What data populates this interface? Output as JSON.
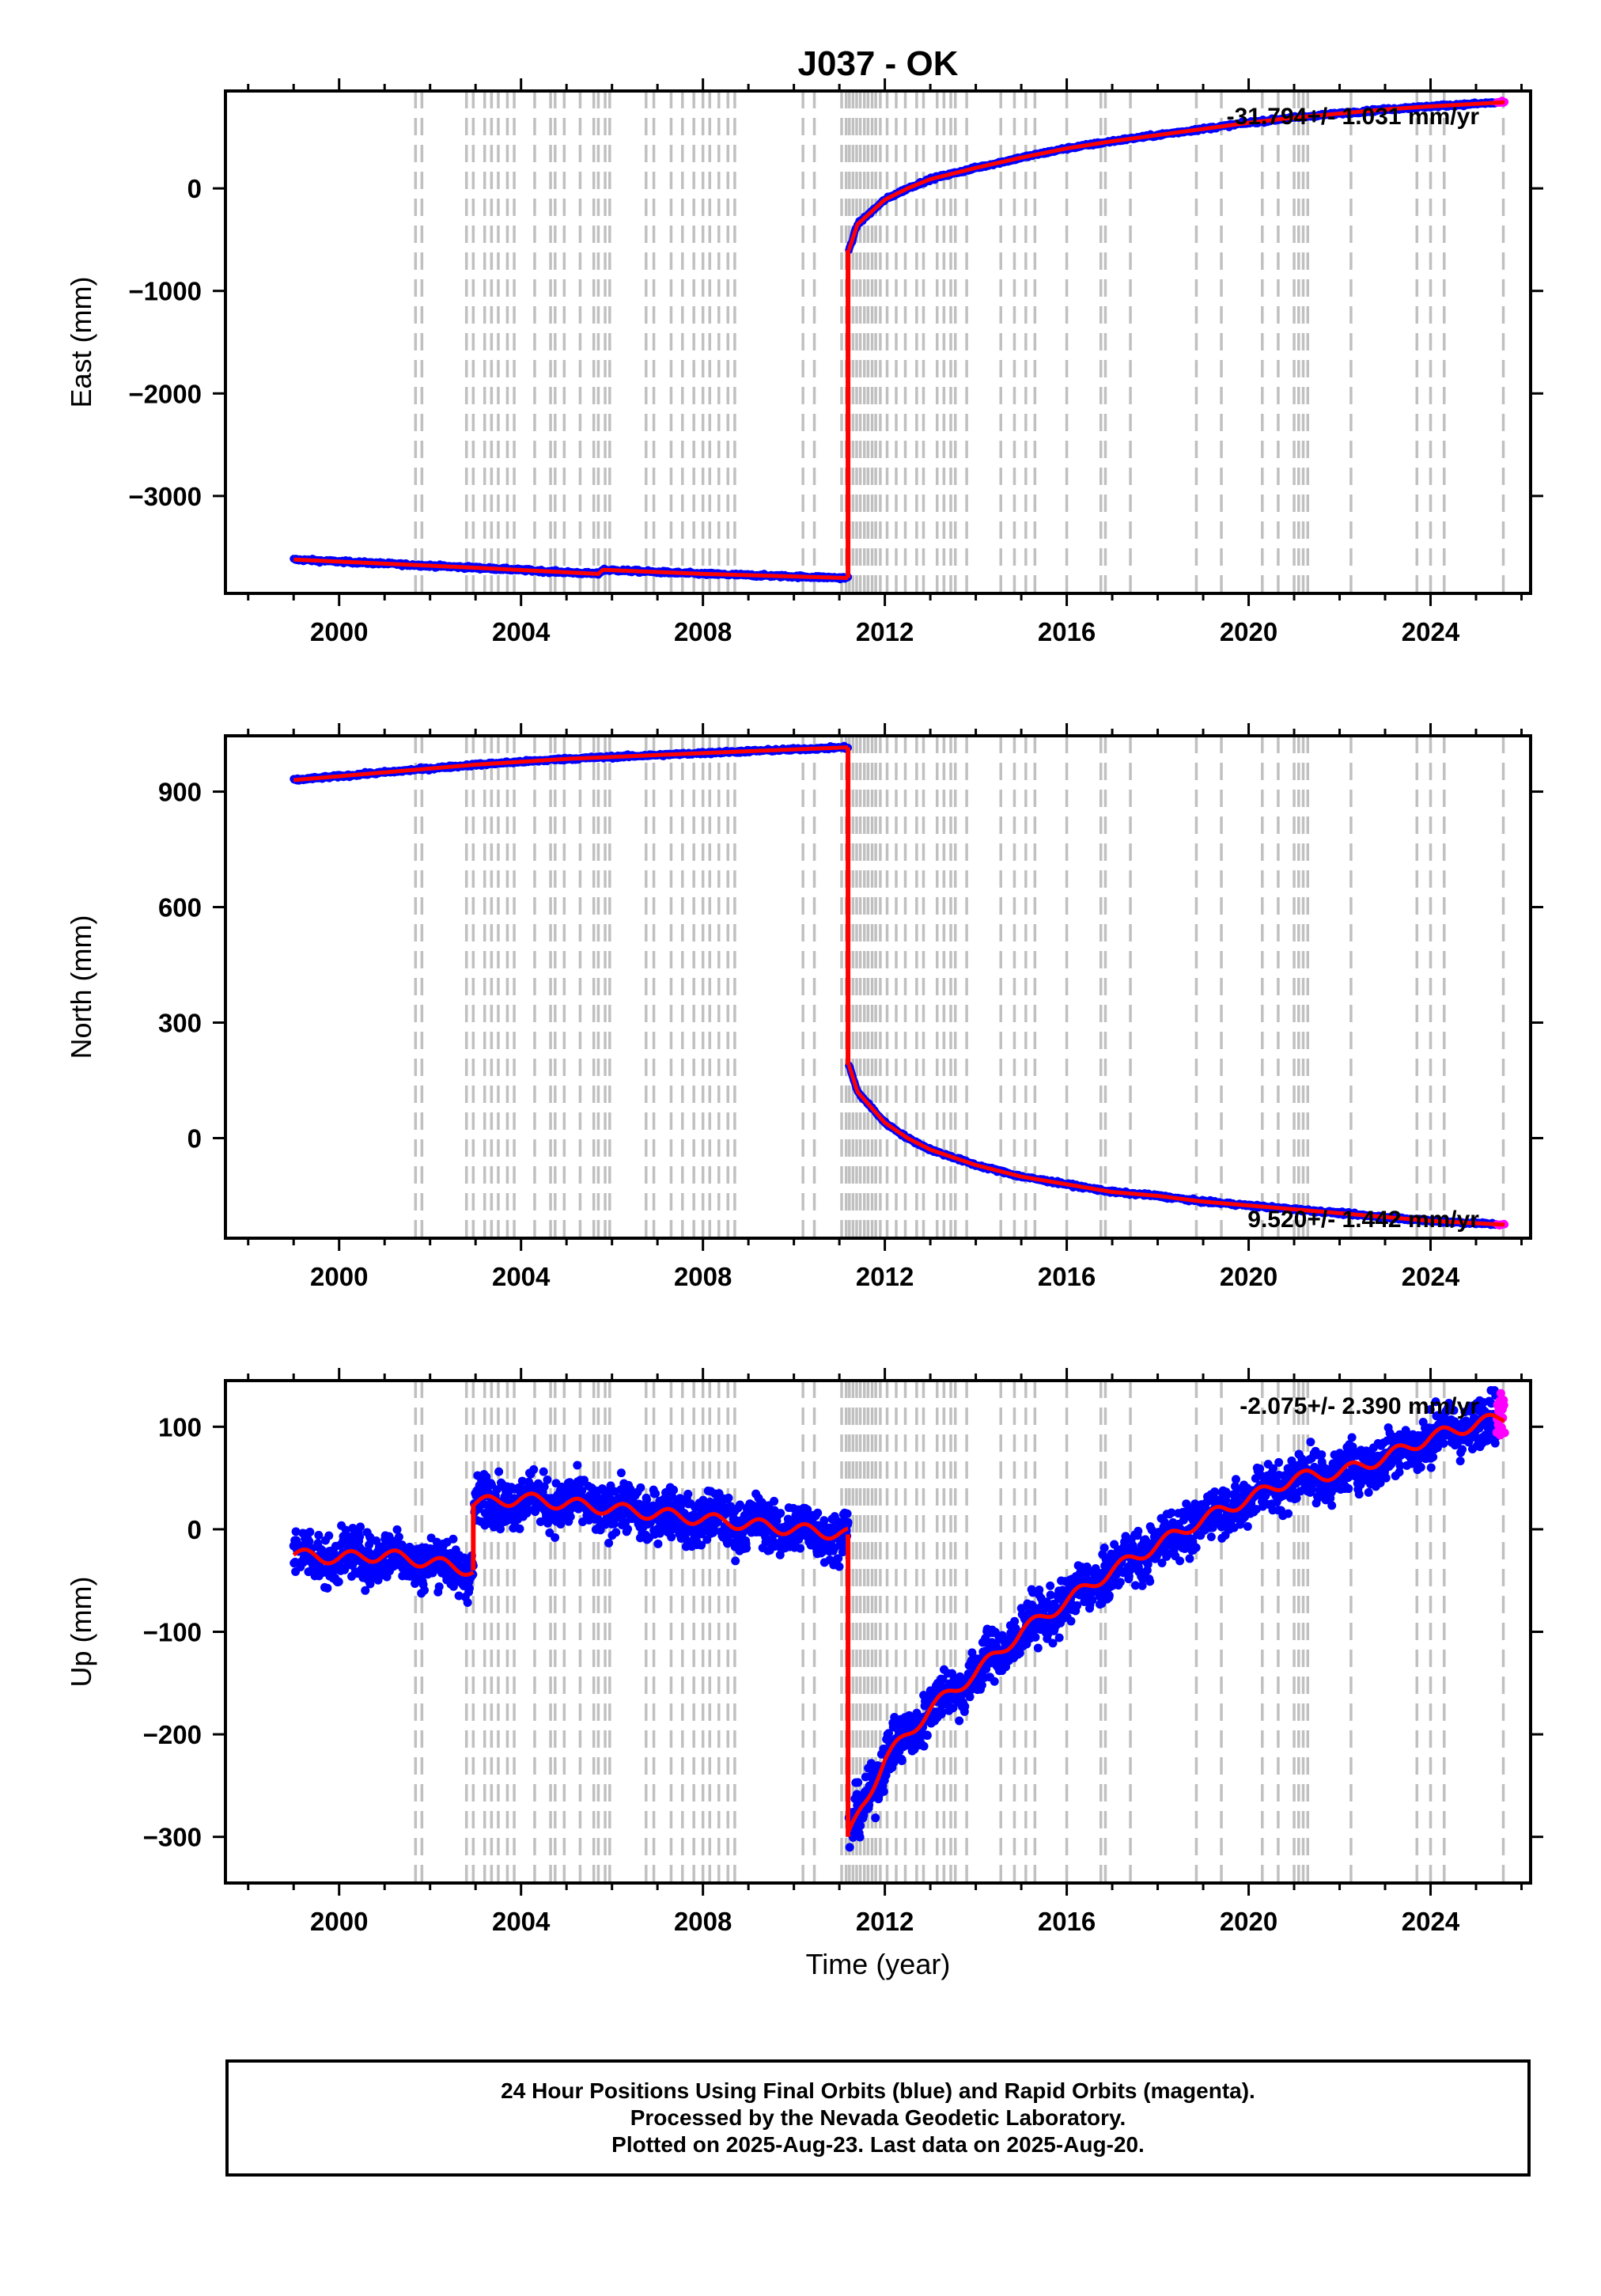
{
  "figure": {
    "title": "J037 - OK",
    "x_label": "Time (year)"
  },
  "caption": {
    "lines": [
      "24 Hour Positions Using Final Orbits (blue) and Rapid Orbits (magenta).",
      "Processed by the Nevada Geodetic Laboratory.",
      "Plotted on 2025-Aug-23. Last data on 2025-Aug-20."
    ]
  },
  "colors": {
    "final_orbits": "#0000ff",
    "rapid_orbits": "#ff00ff",
    "model_fit": "#ff0000",
    "event_lines": "#c0c0c0"
  },
  "event_lines_years": [
    2001.68,
    2001.82,
    2002.8,
    2002.95,
    2003.2,
    2003.35,
    2003.5,
    2003.7,
    2003.85,
    2004.3,
    2004.65,
    2004.75,
    2004.95,
    2005.3,
    2005.6,
    2005.7,
    2005.85,
    2005.95,
    2006.75,
    2006.92,
    2007.3,
    2007.55,
    2007.8,
    2008.0,
    2008.15,
    2008.35,
    2008.55,
    2008.7,
    2010.2,
    2010.45,
    2011.05,
    2011.15,
    2011.22,
    2011.3,
    2011.38,
    2011.46,
    2011.55,
    2011.63,
    2011.72,
    2011.8,
    2011.9,
    2012.05,
    2012.25,
    2012.45,
    2012.7,
    2012.85,
    2013.15,
    2013.3,
    2013.45,
    2013.55,
    2013.8,
    2014.55,
    2014.85,
    2015.1,
    2015.3,
    2016.0,
    2016.75,
    2016.85,
    2017.4,
    2018.85,
    2019.4,
    2020.3,
    2020.65,
    2021.0,
    2021.1,
    2021.2,
    2021.3,
    2022.25,
    2023.7,
    2024.0,
    2024.3,
    2025.6
  ],
  "chart_data": [
    {
      "type": "scatter",
      "component": "East",
      "ylabel": "East (mm)",
      "xlim": [
        1997.5,
        2026.2
      ],
      "ylim": [
        -3950,
        950
      ],
      "xticks": [
        2000,
        2004,
        2008,
        2012,
        2016,
        2020,
        2024
      ],
      "yticks": [
        0,
        -1000,
        -2000,
        -3000
      ],
      "rate_label": "-31.794+/- 1.031 mm/yr",
      "break_year": 2011.19,
      "segments": [
        {
          "x": [
            1999.0,
            2003.0,
            2005.7,
            2005.8,
            2008.0,
            2011.19
          ],
          "y": [
            -3620,
            -3700,
            -3760,
            -3720,
            -3760,
            -3800
          ]
        },
        {
          "x": [
            2011.21,
            2011.4,
            2011.7,
            2012.0,
            2012.5,
            2013.0,
            2014.0,
            2015.0,
            2016.0,
            2017.0,
            2018.0,
            2019.0,
            2020.0,
            2021.0,
            2022.0,
            2023.0,
            2024.0,
            2025.63
          ],
          "y": [
            -600,
            -350,
            -230,
            -110,
            0,
            90,
            200,
            300,
            390,
            460,
            520,
            580,
            640,
            690,
            730,
            770,
            800,
            840
          ]
        }
      ]
    },
    {
      "type": "scatter",
      "component": "North",
      "ylabel": "North (mm)",
      "xlim": [
        1997.5,
        2026.2
      ],
      "ylim": [
        -260,
        1045
      ],
      "xticks": [
        2000,
        2004,
        2008,
        2012,
        2016,
        2020,
        2024
      ],
      "yticks": [
        900,
        600,
        300,
        0
      ],
      "rate_label": "9.520+/- 1.442 mm/yr",
      "break_year": 2011.19,
      "segments": [
        {
          "x": [
            1999.0,
            2001.0,
            2003.0,
            2005.0,
            2007.0,
            2009.0,
            2011.19
          ],
          "y": [
            930,
            950,
            970,
            985,
            995,
            1005,
            1015
          ]
        },
        {
          "x": [
            2011.21,
            2011.4,
            2011.7,
            2012.0,
            2012.5,
            2013.0,
            2014.0,
            2015.0,
            2016.0,
            2017.0,
            2018.0,
            2019.0,
            2020.0,
            2021.0,
            2022.0,
            2023.0,
            2024.0,
            2025.63
          ],
          "y": [
            190,
            120,
            80,
            40,
            0,
            -30,
            -70,
            -100,
            -120,
            -140,
            -150,
            -165,
            -175,
            -185,
            -195,
            -205,
            -215,
            -225
          ]
        }
      ]
    },
    {
      "type": "scatter",
      "component": "Up",
      "ylabel": "Up (mm)",
      "xlim": [
        1997.5,
        2026.2
      ],
      "ylim": [
        -345,
        145
      ],
      "xticks": [
        2000,
        2004,
        2008,
        2012,
        2016,
        2020,
        2024
      ],
      "yticks": [
        100,
        0,
        -100,
        -200,
        -300
      ],
      "rate_label": "-2.075+/- 2.390 mm/yr",
      "break_year": 2011.19,
      "scatter_noise": 12,
      "segments": [
        {
          "x": [
            1999.0,
            2000.0,
            2001.0,
            2002.0,
            2002.95
          ],
          "y": [
            -25,
            -28,
            -25,
            -32,
            -40
          ]
        },
        {
          "x": [
            2002.97,
            2004.0,
            2005.0,
            2006.0,
            2007.0,
            2008.0,
            2009.0,
            2010.0,
            2011.19
          ],
          "y": [
            25,
            30,
            25,
            20,
            15,
            10,
            5,
            0,
            -5
          ]
        },
        {
          "x": [
            2011.21,
            2011.5,
            2012.0,
            2013.0,
            2014.0,
            2015.0,
            2016.0,
            2017.0,
            2018.0,
            2019.0,
            2020.0,
            2021.0,
            2022.0,
            2023.0,
            2024.0,
            2025.63
          ],
          "y": [
            -300,
            -270,
            -225,
            -175,
            -140,
            -100,
            -70,
            -40,
            -15,
            10,
            30,
            50,
            55,
            70,
            90,
            110
          ]
        }
      ]
    }
  ]
}
